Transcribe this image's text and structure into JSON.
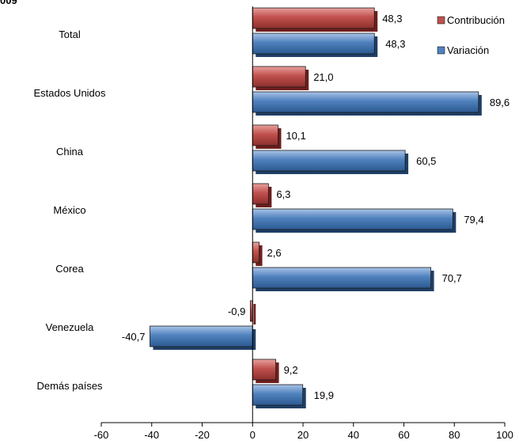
{
  "chart_data": {
    "type": "bar",
    "orientation": "horizontal",
    "title_fragment": "009",
    "categories": [
      "Total",
      "Estados Unidos",
      "China",
      "México",
      "Corea",
      "Venezuela",
      "Demás países"
    ],
    "series": [
      {
        "name": "Contribución",
        "values": [
          48.3,
          21.0,
          10.1,
          6.3,
          2.6,
          -0.9,
          9.2
        ],
        "labels": [
          "48,3",
          "21,0",
          "10,1",
          "6,3",
          "2,6",
          "-0,9",
          "9,2"
        ],
        "color": "#c0504d"
      },
      {
        "name": "Variación",
        "values": [
          48.3,
          89.6,
          60.5,
          79.4,
          70.7,
          -40.7,
          19.9
        ],
        "labels": [
          "48,3",
          "89,6",
          "60,5",
          "79,4",
          "70,7",
          "-40,7",
          "19,9"
        ],
        "color": "#4f81bd"
      }
    ],
    "xlim": [
      -60,
      100
    ],
    "xticks": [
      -60,
      -40,
      -20,
      0,
      20,
      40,
      60,
      80,
      100
    ],
    "grid": false,
    "legend_position": "top-right"
  }
}
